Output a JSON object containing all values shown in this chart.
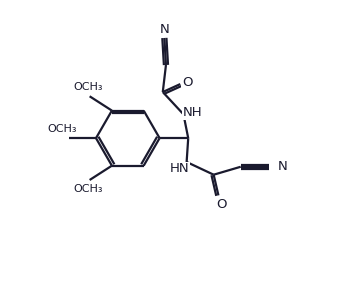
{
  "background_color": "#ffffff",
  "line_color": "#1a1a2e",
  "bond_lw": 1.6,
  "font_size": 9.5,
  "figsize": [
    3.51,
    2.89
  ],
  "dpi": 100,
  "labels": {
    "N": "N",
    "NH": "NH",
    "HN": "HN",
    "O": "O",
    "OMe": "OCH₃"
  }
}
